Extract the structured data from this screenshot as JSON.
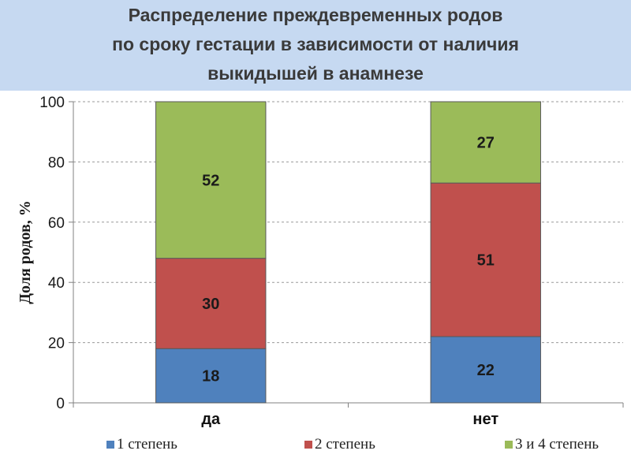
{
  "title_lines": [
    "Распределение преждевременных родов",
    "по сроку гестации в зависимости от наличия",
    "выкидышей в анамнезе"
  ],
  "chart_data": {
    "type": "bar",
    "stacked": true,
    "categories": [
      "да",
      "нет"
    ],
    "series": [
      {
        "name": "1 степень",
        "values": [
          18,
          22
        ],
        "color": "#4f81bd"
      },
      {
        "name": "2 степень",
        "values": [
          30,
          51
        ],
        "color": "#c0504d"
      },
      {
        "name": "3 и 4 степень",
        "values": [
          52,
          27
        ],
        "color": "#9bbb59"
      }
    ],
    "ylabel": "Доля родов, %",
    "xlabel": "",
    "ylim": [
      0,
      100
    ],
    "yticks": [
      0,
      20,
      40,
      60,
      80,
      100
    ],
    "grid": true,
    "legend_position": "bottom"
  }
}
